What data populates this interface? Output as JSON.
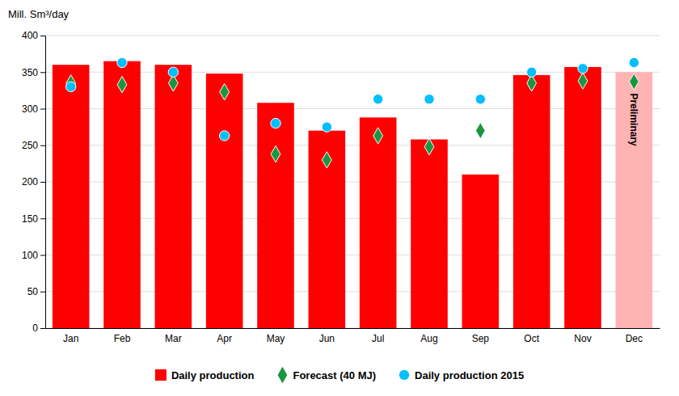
{
  "chart_data": {
    "type": "bar",
    "ylabel": "Mill. Sm³/day",
    "categories": [
      "Jan",
      "Feb",
      "Mar",
      "Apr",
      "May",
      "Jun",
      "Jul",
      "Aug",
      "Sep",
      "Oct",
      "Nov",
      "Dec"
    ],
    "series": [
      {
        "name": "Daily production",
        "type": "bar",
        "colors": [
          "#ff0000",
          "#ff0000",
          "#ff0000",
          "#ff0000",
          "#ff0000",
          "#ff0000",
          "#ff0000",
          "#ff0000",
          "#ff0000",
          "#ff0000",
          "#ff0000",
          "#ffb3b3"
        ],
        "values": [
          360,
          365,
          360,
          348,
          308,
          270,
          288,
          258,
          210,
          346,
          357,
          350
        ]
      },
      {
        "name": "Forecast (40 MJ)",
        "type": "scatter",
        "marker": "diamond",
        "color": "#1a9641",
        "values": [
          335,
          333,
          335,
          323,
          238,
          230,
          263,
          248,
          270,
          335,
          338,
          337
        ]
      },
      {
        "name": "Daily production 2015",
        "type": "scatter",
        "marker": "circle",
        "color": "#00bfff",
        "values": [
          330,
          363,
          350,
          263,
          280,
          275,
          313,
          313,
          313,
          350,
          355,
          363
        ]
      }
    ],
    "annotations": [
      {
        "text": "Preliminary",
        "x": "Dec",
        "y": 285
      }
    ],
    "ylim": [
      0,
      400
    ],
    "yticks": [
      0,
      50,
      100,
      150,
      200,
      250,
      300,
      350,
      400
    ],
    "grid": true,
    "legend": "bottom"
  }
}
